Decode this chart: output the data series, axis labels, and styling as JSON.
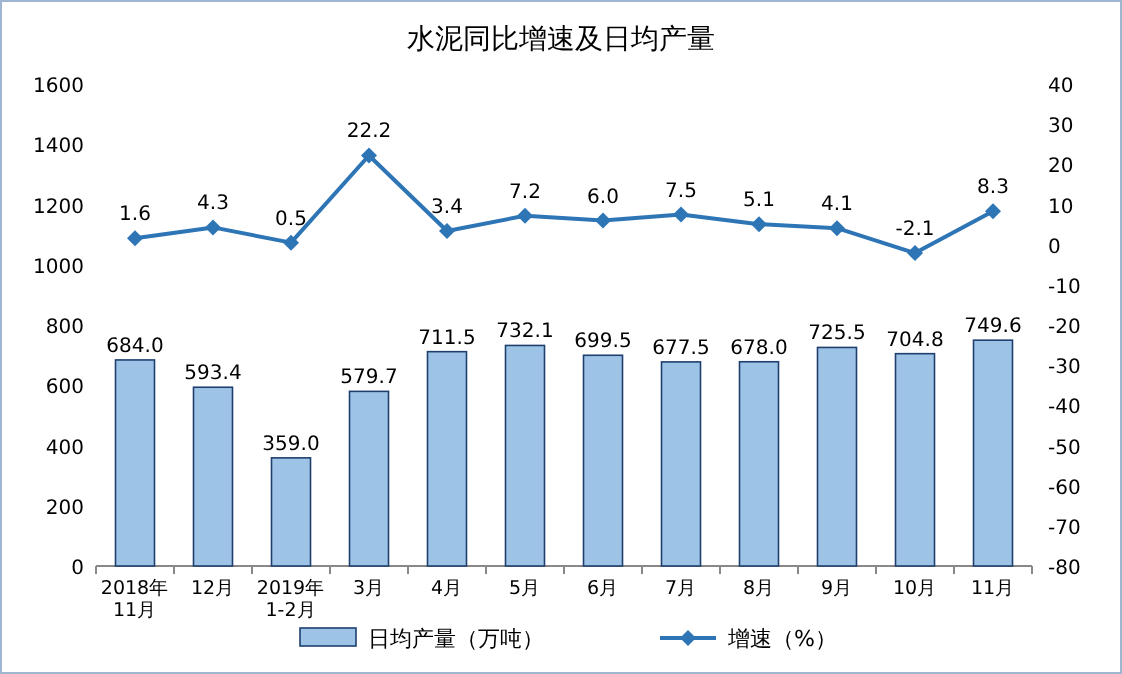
{
  "chart_data": {
    "type": "bar",
    "title": "水泥同比增速及日均产量",
    "categories": [
      "2018年\n11月",
      "12月",
      "2019年\n1-2月",
      "3月",
      "4月",
      "5月",
      "6月",
      "7月",
      "8月",
      "9月",
      "10月",
      "11月"
    ],
    "series": [
      {
        "name": "日均产量（万吨）",
        "color": "#9dc3e6",
        "values": [
          684.0,
          593.4,
          359.0,
          579.7,
          711.5,
          732.1,
          699.5,
          677.5,
          678.0,
          725.5,
          704.8,
          749.6
        ],
        "value_labels": [
          "684.0",
          "593.4",
          "359.0",
          "579.7",
          "711.5",
          "732.1",
          "699.5",
          "677.5",
          "678.0",
          "725.5",
          "704.8",
          "749.6"
        ]
      },
      {
        "name": "增速（%）",
        "type": "line",
        "axis": "y2",
        "color": "#2e75b6",
        "marker": "diamond",
        "values": [
          1.6,
          4.3,
          0.5,
          22.2,
          3.4,
          7.2,
          6.0,
          7.5,
          5.1,
          4.1,
          -2.1,
          8.3
        ],
        "value_labels": [
          "1.6",
          "4.3",
          "0.5",
          "22.2",
          "3.4",
          "7.2",
          "6.0",
          "7.5",
          "5.1",
          "4.1",
          "-2.1",
          "8.3"
        ]
      }
    ],
    "ylim": [
      0,
      1600
    ],
    "yticks": [
      0,
      200,
      400,
      600,
      800,
      1000,
      1200,
      1400,
      1600
    ],
    "y2lim": [
      -80,
      40
    ],
    "y2ticks": [
      -80,
      -70,
      -60,
      -50,
      -40,
      -30,
      -20,
      -10,
      0,
      10,
      20,
      30,
      40
    ],
    "legend": "bottom",
    "grid": false
  }
}
